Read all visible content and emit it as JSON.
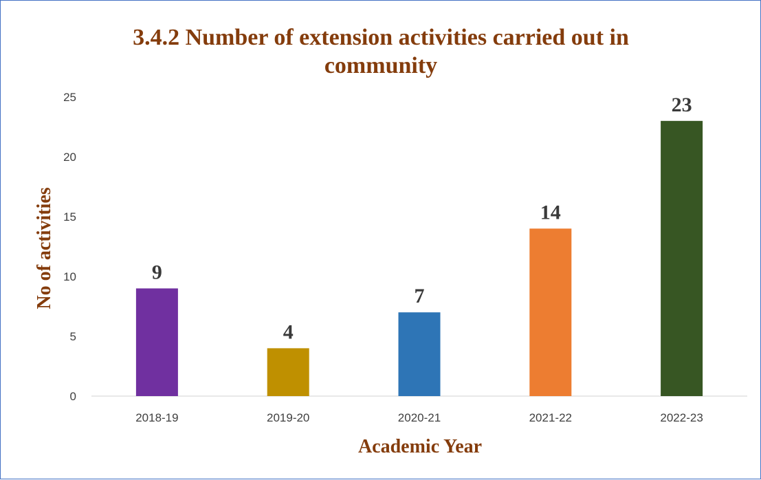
{
  "chart_data": {
    "type": "bar",
    "title_lines": [
      "3.4.2 Number of extension activities carried out in",
      "community"
    ],
    "xlabel": "Academic Year",
    "ylabel": "No of activities",
    "categories": [
      "2018-19",
      "2019-20",
      "2020-21",
      "2021-22",
      "2022-23"
    ],
    "values": [
      9,
      4,
      7,
      14,
      23
    ],
    "colors": [
      "#7030a0",
      "#bf9000",
      "#2e75b6",
      "#ed7d31",
      "#375623"
    ],
    "yticks": [
      "0",
      "5",
      "10",
      "15",
      "20",
      "25"
    ],
    "ylim": [
      0,
      25
    ],
    "grid": false,
    "legend": "none",
    "data_labels": true
  }
}
